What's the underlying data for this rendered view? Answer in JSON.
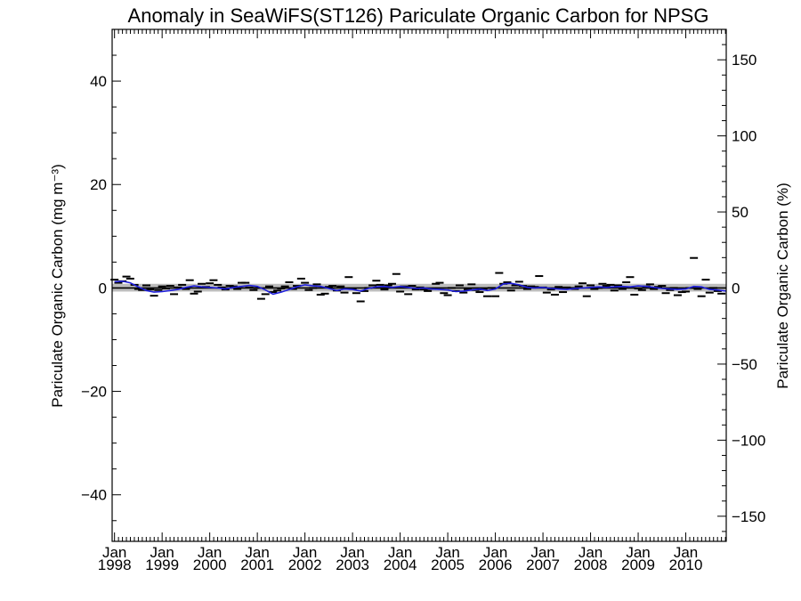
{
  "chart_data": {
    "type": "scatter",
    "title": "Anomaly in SeaWiFS(ST126) Pariculate Organic Carbon for NPSG",
    "ylabel_left": "Pariculate Organic Carbon (mg m⁻³)",
    "ylabel_right": "Pariculate Organic Carbon (%)",
    "xlabel": "",
    "xlim": [
      1997.95,
      2010.85
    ],
    "ylim_left": [
      -49,
      50
    ],
    "ylim_right": [
      -166.5,
      170
    ],
    "left_ticks": [
      -40,
      -20,
      0,
      20,
      40
    ],
    "right_ticks": [
      -150,
      -100,
      -50,
      0,
      50,
      100,
      150
    ],
    "x_ticks": [
      {
        "x": 1998,
        "month": "Jan",
        "year": "1998"
      },
      {
        "x": 1999,
        "month": "Jan",
        "year": "1999"
      },
      {
        "x": 2000,
        "month": "Jan",
        "year": "2000"
      },
      {
        "x": 2001,
        "month": "Jan",
        "year": "2001"
      },
      {
        "x": 2002,
        "month": "Jan",
        "year": "2002"
      },
      {
        "x": 2003,
        "month": "Jan",
        "year": "2003"
      },
      {
        "x": 2004,
        "month": "Jan",
        "year": "2004"
      },
      {
        "x": 2005,
        "month": "Jan",
        "year": "2005"
      },
      {
        "x": 2006,
        "month": "Jan",
        "year": "2006"
      },
      {
        "x": 2007,
        "month": "Jan",
        "year": "2007"
      },
      {
        "x": 2008,
        "month": "Jan",
        "year": "2008"
      },
      {
        "x": 2009,
        "month": "Jan",
        "year": "2009"
      },
      {
        "x": 2010,
        "month": "Jan",
        "year": "2010"
      }
    ],
    "uncertainty_band": [
      -0.7,
      0.8
    ],
    "zero_line": 0,
    "series": [
      {
        "kind": "monthly-anomaly-markers",
        "color": "#000000",
        "x": [
          1998.0,
          1998.08,
          1998.17,
          1998.25,
          1998.33,
          1998.42,
          1998.5,
          1998.58,
          1998.67,
          1998.75,
          1998.83,
          1998.92,
          1999.0,
          1999.08,
          1999.17,
          1999.25,
          1999.33,
          1999.42,
          1999.5,
          1999.58,
          1999.67,
          1999.75,
          1999.83,
          1999.92,
          2000.0,
          2000.08,
          2000.17,
          2000.25,
          2000.33,
          2000.42,
          2000.5,
          2000.58,
          2000.67,
          2000.75,
          2000.83,
          2000.92,
          2001.0,
          2001.08,
          2001.17,
          2001.25,
          2001.33,
          2001.42,
          2001.5,
          2001.58,
          2001.67,
          2001.75,
          2001.83,
          2001.92,
          2002.0,
          2002.08,
          2002.17,
          2002.25,
          2002.33,
          2002.42,
          2002.5,
          2002.58,
          2002.67,
          2002.75,
          2002.83,
          2002.92,
          2003.0,
          2003.08,
          2003.17,
          2003.25,
          2003.33,
          2003.42,
          2003.5,
          2003.58,
          2003.67,
          2003.75,
          2003.83,
          2003.92,
          2004.0,
          2004.08,
          2004.17,
          2004.25,
          2004.33,
          2004.42,
          2004.5,
          2004.58,
          2004.67,
          2004.75,
          2004.83,
          2004.92,
          2005.0,
          2005.08,
          2005.17,
          2005.25,
          2005.33,
          2005.42,
          2005.5,
          2005.58,
          2005.67,
          2005.75,
          2005.83,
          2005.92,
          2006.0,
          2006.08,
          2006.17,
          2006.25,
          2006.33,
          2006.42,
          2006.5,
          2006.58,
          2006.67,
          2006.75,
          2006.83,
          2006.92,
          2007.0,
          2007.08,
          2007.17,
          2007.25,
          2007.33,
          2007.42,
          2007.5,
          2007.58,
          2007.67,
          2007.75,
          2007.83,
          2007.92,
          2008.0,
          2008.08,
          2008.17,
          2008.25,
          2008.33,
          2008.42,
          2008.5,
          2008.58,
          2008.67,
          2008.75,
          2008.83,
          2008.92,
          2009.0,
          2009.08,
          2009.17,
          2009.25,
          2009.33,
          2009.42,
          2009.5,
          2009.58,
          2009.67,
          2009.75,
          2009.83,
          2009.92,
          2010.0,
          2010.08,
          2010.17,
          2010.25,
          2010.33,
          2010.42,
          2010.5,
          2010.58,
          2010.67,
          2010.75
        ],
        "y": [
          1.6,
          1.0,
          1.3,
          2.2,
          1.8,
          0.6,
          -0.2,
          -0.4,
          0.5,
          -0.3,
          -1.5,
          -0.4,
          0.3,
          -0.1,
          0.4,
          -1.2,
          0.1,
          0.6,
          -0.2,
          1.5,
          -1.1,
          -0.7,
          0.8,
          0.2,
          0.9,
          1.5,
          0.6,
          0.1,
          -0.3,
          0.4,
          0.3,
          -0.2,
          1.0,
          1.0,
          0.1,
          -0.4,
          0.0,
          -2.1,
          -1.2,
          0.3,
          -0.8,
          -0.5,
          -0.1,
          0.3,
          1.1,
          -0.2,
          0.4,
          1.8,
          1.0,
          -0.4,
          0.0,
          0.7,
          -1.3,
          -1.1,
          0.2,
          0.4,
          -0.5,
          0.3,
          -0.9,
          2.1,
          -0.2,
          -1.0,
          -2.6,
          -0.6,
          0.0,
          0.5,
          1.4,
          0.6,
          -0.3,
          0.5,
          0.8,
          2.7,
          -0.7,
          0.3,
          -1.2,
          0.4,
          -0.3,
          0.1,
          -0.3,
          -0.6,
          -0.2,
          0.8,
          1.0,
          -1.0,
          -1.4,
          0.0,
          -0.6,
          0.5,
          -0.9,
          -0.3,
          0.7,
          -0.4,
          -0.8,
          -0.3,
          -1.6,
          0.0,
          -1.6,
          2.9,
          0.8,
          1.1,
          -0.5,
          0.5,
          1.2,
          0.4,
          -0.2,
          0.3,
          0.2,
          2.3,
          0.1,
          -0.9,
          -0.3,
          -1.3,
          0.2,
          -0.8,
          0.1,
          0.0,
          -0.2,
          0.3,
          0.9,
          -1.6,
          0.5,
          -0.2,
          0.0,
          0.8,
          0.4,
          0.6,
          -0.5,
          0.5,
          -0.2,
          1.1,
          2.1,
          -1.3,
          -0.1,
          -0.4,
          0.3,
          0.7,
          -0.2,
          0.2,
          0.4,
          -1.0,
          -0.4,
          0.0,
          -1.4,
          -0.8,
          -0.7,
          0.0,
          5.8,
          -0.2,
          -1.6,
          1.6,
          -0.9,
          0.0,
          -0.6,
          -1.1
        ]
      },
      {
        "kind": "smoothed-anomaly-line",
        "color": "#1f1fdc",
        "x": [
          1998.0,
          1998.17,
          1998.33,
          1998.5,
          1998.67,
          1998.83,
          1999.0,
          1999.17,
          1999.33,
          1999.5,
          1999.67,
          1999.83,
          2000.0,
          2000.17,
          2000.33,
          2000.5,
          2000.67,
          2000.83,
          2001.0,
          2001.17,
          2001.33,
          2001.5,
          2001.67,
          2001.83,
          2002.0,
          2002.17,
          2002.33,
          2002.5,
          2002.67,
          2002.83,
          2003.0,
          2003.17,
          2003.33,
          2003.5,
          2003.67,
          2003.83,
          2004.0,
          2004.17,
          2004.33,
          2004.5,
          2004.67,
          2004.83,
          2005.0,
          2005.17,
          2005.33,
          2005.5,
          2005.67,
          2005.83,
          2006.0,
          2006.17,
          2006.33,
          2006.5,
          2006.67,
          2006.83,
          2007.0,
          2007.17,
          2007.33,
          2007.5,
          2007.67,
          2007.83,
          2008.0,
          2008.17,
          2008.33,
          2008.5,
          2008.67,
          2008.83,
          2009.0,
          2009.17,
          2009.33,
          2009.5,
          2009.67,
          2009.83,
          2010.0,
          2010.17,
          2010.33,
          2010.5,
          2010.67,
          2010.85
        ],
        "y": [
          1.2,
          1.3,
          1.0,
          0.2,
          -0.5,
          -0.8,
          -0.7,
          -0.5,
          -0.3,
          0.1,
          0.4,
          0.2,
          0.1,
          0.0,
          -0.2,
          0.1,
          0.3,
          0.5,
          0.3,
          -0.4,
          -1.2,
          -0.8,
          -0.3,
          0.2,
          0.6,
          0.4,
          0.3,
          -0.1,
          -0.5,
          -0.2,
          -0.3,
          -0.6,
          -0.1,
          0.2,
          0.3,
          0.1,
          0.3,
          0.1,
          -0.1,
          0.0,
          -0.2,
          -0.3,
          -0.4,
          -0.7,
          -0.6,
          -0.4,
          -0.2,
          -0.5,
          -0.2,
          0.8,
          0.9,
          0.6,
          0.1,
          0.0,
          0.1,
          -0.1,
          -0.2,
          -0.3,
          -0.1,
          0.0,
          0.1,
          0.2,
          0.1,
          0.2,
          0.3,
          0.2,
          0.4,
          0.3,
          0.1,
          -0.1,
          -0.2,
          -0.3,
          -0.2,
          0.3,
          0.2,
          -0.3,
          -0.4,
          -0.6
        ]
      }
    ]
  }
}
